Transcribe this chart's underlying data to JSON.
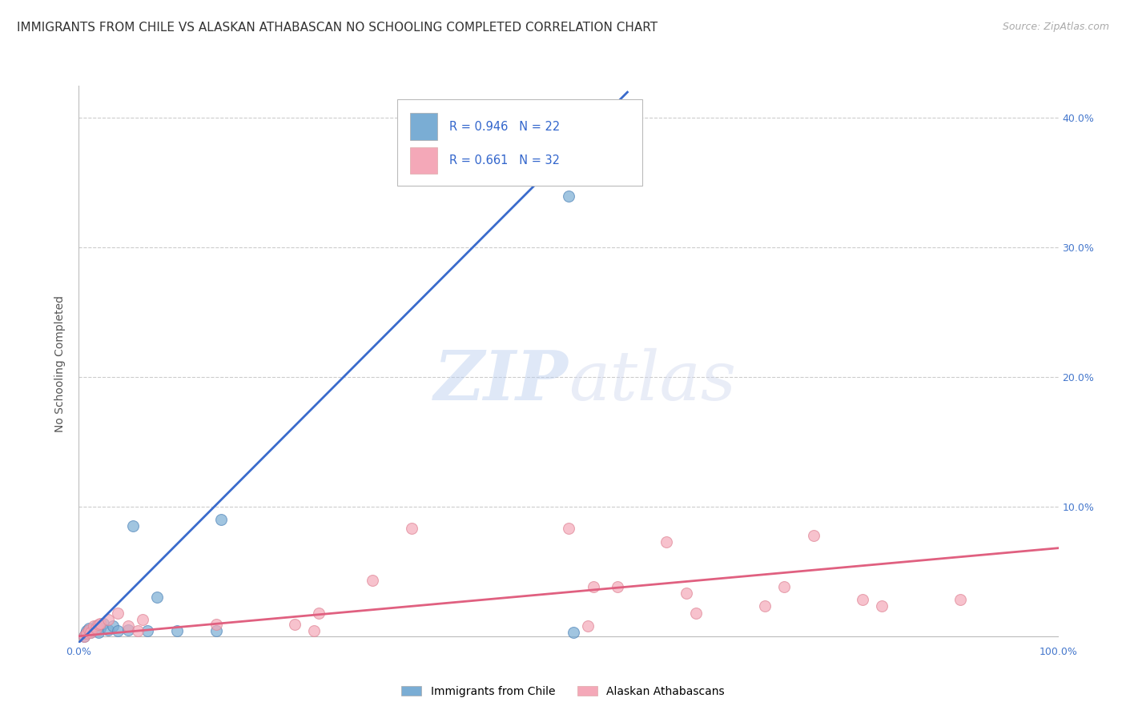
{
  "title": "IMMIGRANTS FROM CHILE VS ALASKAN ATHABASCAN NO SCHOOLING COMPLETED CORRELATION CHART",
  "source": "Source: ZipAtlas.com",
  "ylabel": "No Schooling Completed",
  "y_ticks": [
    0.0,
    0.1,
    0.2,
    0.3,
    0.4
  ],
  "y_tick_labels_right": [
    "",
    "10.0%",
    "20.0%",
    "30.0%",
    "40.0%"
  ],
  "xlim": [
    0.0,
    1.0
  ],
  "ylim": [
    -0.005,
    0.425
  ],
  "watermark": "ZIPatlas",
  "legend_blue_R": "R = 0.946",
  "legend_blue_N": "N = 22",
  "legend_pink_R": "R = 0.661",
  "legend_pink_N": "N = 32",
  "legend_label_blue": "Immigrants from Chile",
  "legend_label_pink": "Alaskan Athabascans",
  "blue_color": "#7aadd4",
  "pink_color": "#f4a8b8",
  "blue_line_color": "#3a6bcc",
  "pink_line_color": "#e06080",
  "blue_edge_color": "#5588bb",
  "pink_edge_color": "#e08898",
  "blue_scatter_x": [
    0.005,
    0.007,
    0.008,
    0.01,
    0.012,
    0.015,
    0.018,
    0.02,
    0.022,
    0.025,
    0.03,
    0.035,
    0.04,
    0.05,
    0.055,
    0.07,
    0.08,
    0.1,
    0.14,
    0.145,
    0.5,
    0.505
  ],
  "blue_scatter_y": [
    0.0,
    0.002,
    0.004,
    0.006,
    0.003,
    0.005,
    0.008,
    0.003,
    0.006,
    0.01,
    0.005,
    0.008,
    0.004,
    0.005,
    0.085,
    0.004,
    0.03,
    0.004,
    0.004,
    0.09,
    0.34,
    0.003
  ],
  "pink_scatter_x": [
    0.005,
    0.008,
    0.01,
    0.012,
    0.015,
    0.018,
    0.02,
    0.022,
    0.03,
    0.04,
    0.05,
    0.06,
    0.065,
    0.14,
    0.22,
    0.24,
    0.245,
    0.3,
    0.34,
    0.5,
    0.52,
    0.525,
    0.55,
    0.6,
    0.62,
    0.63,
    0.7,
    0.72,
    0.75,
    0.8,
    0.82,
    0.9
  ],
  "pink_scatter_y": [
    0.0,
    0.002,
    0.005,
    0.003,
    0.008,
    0.006,
    0.009,
    0.01,
    0.013,
    0.018,
    0.008,
    0.004,
    0.013,
    0.009,
    0.009,
    0.004,
    0.018,
    0.043,
    0.083,
    0.083,
    0.008,
    0.038,
    0.038,
    0.073,
    0.033,
    0.018,
    0.023,
    0.038,
    0.078,
    0.028,
    0.023,
    0.028
  ],
  "blue_trendline_x": [
    0.0,
    0.56
  ],
  "blue_trendline_y": [
    -0.005,
    0.42
  ],
  "pink_trendline_x": [
    0.0,
    1.0
  ],
  "pink_trendline_y": [
    0.0,
    0.068
  ],
  "grid_color": "#cccccc",
  "background_color": "#ffffff",
  "title_fontsize": 11,
  "marker_size": 100
}
